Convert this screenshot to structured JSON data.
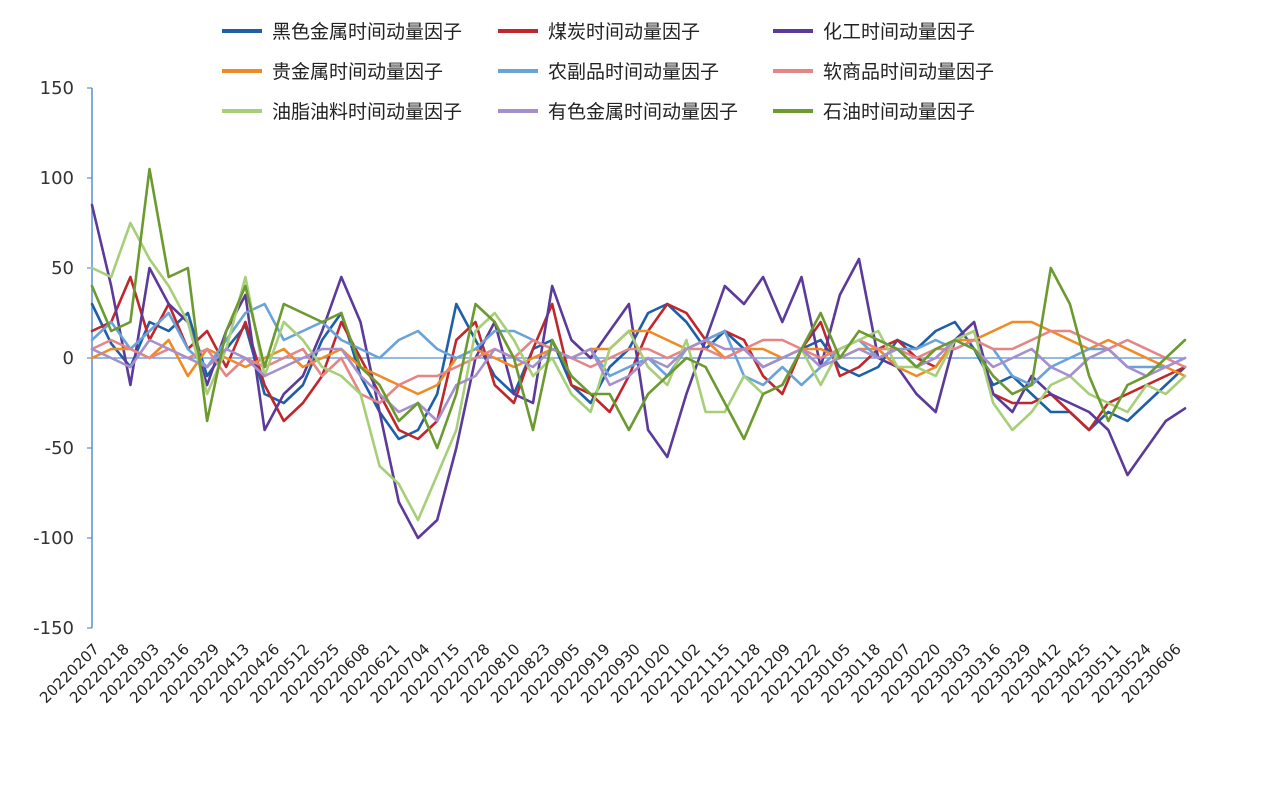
{
  "chart_data": {
    "type": "line",
    "title": "",
    "xlabel": "",
    "ylabel": "",
    "ylim": [
      -150,
      150
    ],
    "yticks": [
      150,
      100,
      50,
      0,
      -50,
      -100,
      -150
    ],
    "ytick_labels": [
      "150",
      "100",
      "50",
      "0",
      "-50",
      "-100",
      "-150"
    ],
    "grid": false,
    "legend_position": "top",
    "x_tick_labels": [
      "20220207",
      "20220218",
      "20220303",
      "20220316",
      "20220329",
      "20220413",
      "20220426",
      "20220512",
      "20220525",
      "20220608",
      "20220621",
      "20220704",
      "20220715",
      "20220728",
      "20220810",
      "20220823",
      "20220905",
      "20220919",
      "20220930",
      "20221020",
      "20221102",
      "20221115",
      "20221128",
      "20221209",
      "20221222",
      "20230105",
      "20230118",
      "20230207",
      "20230220",
      "20230303",
      "20230316",
      "20230329",
      "20230412",
      "20230425",
      "20230511",
      "20230524",
      "20230606"
    ],
    "series": [
      {
        "name": "黑色金属时间动量因子",
        "color": "#1f5fa8",
        "values": [
          30,
          8,
          -5,
          20,
          15,
          25,
          -10,
          5,
          18,
          -20,
          -25,
          -15,
          10,
          25,
          -10,
          -30,
          -45,
          -40,
          -20,
          30,
          10,
          -10,
          -20,
          5,
          10,
          -15,
          -25,
          -5,
          5,
          25,
          30,
          20,
          5,
          15,
          5,
          -5,
          0,
          5,
          10,
          -5,
          -10,
          -5,
          10,
          5,
          15,
          20,
          5,
          -15,
          -10,
          -20,
          -30,
          -30,
          -40,
          -30,
          -35,
          -25,
          -15,
          -5
        ]
      },
      {
        "name": "煤炭时间动量因子",
        "color": "#c0272d",
        "values": [
          15,
          20,
          45,
          10,
          30,
          5,
          15,
          -5,
          20,
          -15,
          -35,
          -25,
          -10,
          20,
          0,
          -20,
          -40,
          -45,
          -35,
          10,
          20,
          -15,
          -25,
          5,
          30,
          -15,
          -20,
          -30,
          -10,
          15,
          30,
          25,
          10,
          15,
          10,
          -10,
          -20,
          5,
          20,
          -10,
          -5,
          5,
          10,
          0,
          -5,
          10,
          15,
          -20,
          -25,
          -25,
          -20,
          -30,
          -40,
          -25,
          -20,
          -15,
          -10,
          -5
        ]
      },
      {
        "name": "化工时间动量因子",
        "color": "#5b3a9a",
        "values": [
          85,
          40,
          -15,
          50,
          30,
          20,
          -15,
          15,
          35,
          -40,
          -20,
          -10,
          15,
          45,
          20,
          -30,
          -80,
          -100,
          -90,
          -50,
          0,
          20,
          -20,
          -25,
          40,
          10,
          0,
          15,
          30,
          -40,
          -55,
          -20,
          10,
          40,
          30,
          45,
          20,
          45,
          -5,
          35,
          55,
          0,
          -5,
          -20,
          -30,
          10,
          20,
          -20,
          -30,
          -10,
          -20,
          -25,
          -30,
          -40,
          -65,
          -50,
          -35,
          -28
        ]
      },
      {
        "name": "贵金属时间动量因子",
        "color": "#f08a24",
        "values": [
          0,
          5,
          5,
          0,
          10,
          -10,
          5,
          0,
          -5,
          0,
          5,
          -5,
          0,
          5,
          -5,
          -10,
          -15,
          -20,
          -15,
          0,
          5,
          0,
          -5,
          0,
          5,
          0,
          5,
          5,
          15,
          15,
          10,
          5,
          10,
          0,
          5,
          5,
          0,
          5,
          5,
          0,
          5,
          5,
          -5,
          -10,
          -5,
          10,
          10,
          15,
          20,
          20,
          15,
          10,
          5,
          10,
          5,
          0,
          -5,
          -10
        ]
      },
      {
        "name": "农副品时间动量因子",
        "color": "#6aa3d8",
        "values": [
          10,
          20,
          5,
          15,
          25,
          5,
          -5,
          10,
          25,
          30,
          10,
          15,
          20,
          10,
          5,
          0,
          10,
          15,
          5,
          0,
          5,
          15,
          15,
          10,
          5,
          0,
          5,
          -10,
          -5,
          0,
          -10,
          5,
          10,
          15,
          -10,
          -15,
          -5,
          -15,
          -5,
          5,
          10,
          0,
          5,
          5,
          10,
          5,
          10,
          5,
          -10,
          -15,
          -5,
          0,
          5,
          5,
          -5,
          -5,
          -5,
          0
        ]
      },
      {
        "name": "软商品时间动量因子",
        "color": "#e58585",
        "values": [
          5,
          10,
          5,
          0,
          5,
          0,
          5,
          -10,
          0,
          -5,
          0,
          5,
          -10,
          0,
          -20,
          -25,
          -15,
          -10,
          -10,
          -5,
          0,
          5,
          0,
          10,
          5,
          0,
          -5,
          0,
          5,
          5,
          0,
          5,
          5,
          0,
          5,
          10,
          10,
          5,
          0,
          5,
          10,
          5,
          5,
          0,
          5,
          5,
          10,
          5,
          5,
          10,
          15,
          15,
          10,
          5,
          10,
          5,
          0,
          -5
        ]
      },
      {
        "name": "油脂油料时间动量因子",
        "color": "#a6cf78",
        "values": [
          50,
          45,
          75,
          55,
          40,
          20,
          -20,
          5,
          45,
          -10,
          20,
          10,
          -5,
          -10,
          -20,
          -60,
          -70,
          -90,
          -65,
          -40,
          15,
          25,
          10,
          -10,
          0,
          -20,
          -30,
          5,
          15,
          -5,
          -15,
          10,
          -30,
          -30,
          -10,
          -20,
          -15,
          5,
          -15,
          5,
          10,
          15,
          -5,
          -5,
          -10,
          10,
          15,
          -25,
          -40,
          -30,
          -15,
          -10,
          -20,
          -25,
          -30,
          -15,
          -20,
          -10
        ]
      },
      {
        "name": "有色金属时间动量因子",
        "color": "#a58fcc",
        "values": [
          5,
          0,
          -5,
          10,
          5,
          0,
          -5,
          5,
          0,
          -10,
          -5,
          0,
          5,
          5,
          -10,
          -20,
          -30,
          -25,
          -35,
          -15,
          -10,
          5,
          0,
          -5,
          5,
          0,
          5,
          -15,
          -10,
          0,
          -5,
          5,
          10,
          5,
          5,
          -5,
          0,
          5,
          -5,
          0,
          5,
          0,
          5,
          -5,
          0,
          10,
          5,
          -5,
          0,
          5,
          -5,
          -10,
          0,
          5,
          -5,
          -10,
          -5,
          0
        ]
      },
      {
        "name": "石油时间动量因子",
        "color": "#6b9b2e",
        "values": [
          40,
          15,
          20,
          105,
          45,
          50,
          -35,
          15,
          40,
          -5,
          30,
          25,
          20,
          25,
          -5,
          -15,
          -35,
          -25,
          -50,
          -20,
          30,
          20,
          0,
          -40,
          10,
          -10,
          -20,
          -20,
          -40,
          -20,
          -10,
          0,
          -5,
          -25,
          -45,
          -20,
          -15,
          5,
          25,
          0,
          15,
          10,
          5,
          -5,
          5,
          10,
          5,
          -10,
          -20,
          -15,
          50,
          30,
          -10,
          -35,
          -15,
          -10,
          0,
          10
        ]
      }
    ]
  }
}
